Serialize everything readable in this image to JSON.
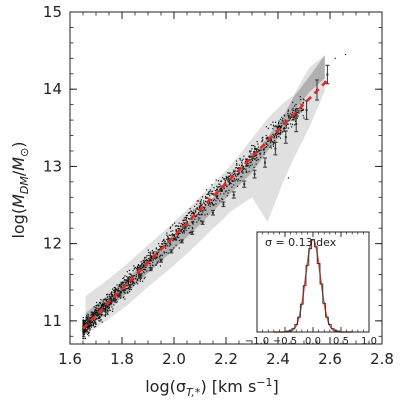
{
  "chart_data": [
    {
      "type": "scatter",
      "xlabel": "log(σ_T,*) [km s⁻¹]",
      "ylabel": "log(M_DM/M_⊙)",
      "xlim": [
        1.6,
        2.8
      ],
      "ylim": [
        10.7,
        15.0
      ],
      "xticks": [
        1.6,
        1.8,
        2.0,
        2.2,
        2.4,
        2.6,
        2.8
      ],
      "xtick_labels": [
        "1.6",
        "1.8",
        "2.0",
        "2.2",
        "2.4",
        "2.6",
        "2.8"
      ],
      "yticks": [
        11,
        12,
        13,
        14,
        15
      ],
      "ytick_labels": [
        "11",
        "12",
        "13",
        "14",
        "15"
      ],
      "grid": false,
      "series": [
        {
          "style": "outer-band",
          "color": "#e0e0e0",
          "x": [
            1.66,
            1.74,
            1.82,
            1.9,
            1.98,
            2.06,
            2.14,
            2.22,
            2.3,
            2.36,
            2.42,
            2.46,
            2.52,
            2.58
          ],
          "upper": [
            11.32,
            11.52,
            11.74,
            11.98,
            12.22,
            12.47,
            12.74,
            13.02,
            13.36,
            13.62,
            13.82,
            13.92,
            14.28,
            14.44
          ],
          "lower": [
            10.82,
            11.0,
            11.2,
            11.44,
            11.66,
            11.9,
            12.16,
            12.42,
            12.6,
            12.28,
            12.8,
            13.1,
            13.5,
            13.98
          ]
        },
        {
          "style": "inner-band",
          "color": "#b0b0b0",
          "x": [
            1.66,
            1.74,
            1.82,
            1.9,
            1.98,
            2.06,
            2.14,
            2.22,
            2.3,
            2.36,
            2.42,
            2.46,
            2.52,
            2.58
          ],
          "upper": [
            11.1,
            11.32,
            11.55,
            11.8,
            12.05,
            12.3,
            12.56,
            12.82,
            13.12,
            13.38,
            13.64,
            13.9,
            14.16,
            14.44
          ],
          "lower": [
            10.92,
            11.14,
            11.36,
            11.62,
            11.86,
            12.12,
            12.38,
            12.66,
            12.92,
            13.2,
            13.44,
            13.7,
            13.96,
            14.14
          ]
        },
        {
          "style": "median-with-errors",
          "color": "#333333",
          "x": [
            1.67,
            1.71,
            1.75,
            1.79,
            1.83,
            1.87,
            1.91,
            1.95,
            1.99,
            2.03,
            2.07,
            2.11,
            2.15,
            2.19,
            2.23,
            2.27,
            2.31,
            2.35,
            2.39,
            2.43,
            2.47,
            2.51,
            2.55,
            2.59
          ],
          "y": [
            10.99,
            11.11,
            11.23,
            11.33,
            11.45,
            11.57,
            11.67,
            11.78,
            11.9,
            12.03,
            12.14,
            12.27,
            12.4,
            12.51,
            12.63,
            12.77,
            12.9,
            13.05,
            13.23,
            13.38,
            13.55,
            13.73,
            13.99,
            14.19
          ],
          "err": [
            0.02,
            0.02,
            0.02,
            0.02,
            0.02,
            0.02,
            0.02,
            0.02,
            0.02,
            0.02,
            0.02,
            0.02,
            0.03,
            0.03,
            0.04,
            0.04,
            0.05,
            0.06,
            0.08,
            0.08,
            0.1,
            0.12,
            0.13,
            0.12
          ]
        },
        {
          "style": "fit-line-dashed",
          "color": "#e8281e",
          "x": [
            1.65,
            2.6
          ],
          "y": [
            10.9,
            14.15
          ]
        },
        {
          "style": "points",
          "color": "#111111",
          "description": "individual objects"
        }
      ]
    },
    {
      "type": "line",
      "inset": true,
      "annotation": "σ = 0.13 dex",
      "xlim": [
        -1.0,
        1.0
      ],
      "ylim": [
        0,
        1.08
      ],
      "xticks": [
        -1.0,
        -0.5,
        0.0,
        0.5,
        1.0
      ],
      "xtick_labels": [
        "−1.0",
        "−0.5",
        "0.0",
        "0.5",
        "1.0"
      ],
      "series": [
        {
          "style": "histogram-steps",
          "color": "#333333",
          "x": [
            -0.45,
            -0.4,
            -0.35,
            -0.3,
            -0.25,
            -0.2,
            -0.15,
            -0.1,
            -0.05,
            0.0,
            0.05,
            0.1,
            0.15,
            0.2,
            0.25,
            0.3,
            0.35,
            0.4,
            0.45
          ],
          "y": [
            0.01,
            0.02,
            0.04,
            0.08,
            0.16,
            0.3,
            0.5,
            0.72,
            0.9,
            1.0,
            0.92,
            0.74,
            0.52,
            0.31,
            0.16,
            0.08,
            0.04,
            0.02,
            0.01
          ]
        },
        {
          "style": "gaussian-fit",
          "color": "#d84a3a",
          "mu": 0.0,
          "sigma": 0.13
        }
      ]
    }
  ]
}
